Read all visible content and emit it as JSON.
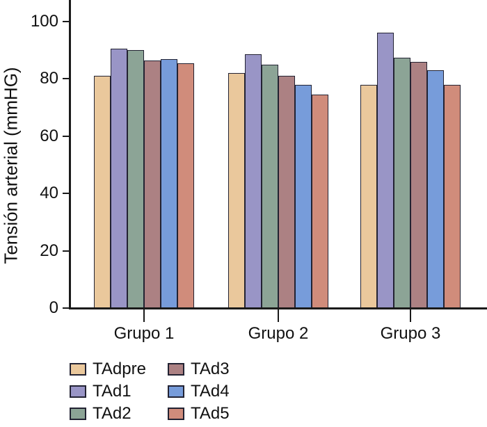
{
  "chart_data": {
    "type": "bar",
    "title": "",
    "xlabel": "",
    "ylabel": "Tensión arterial (mmHG)",
    "categories": [
      "Grupo 1",
      "Grupo 2",
      "Grupo 3"
    ],
    "y_ticks": [
      0,
      20,
      40,
      60,
      80,
      100
    ],
    "ylim": [
      0,
      107.5
    ],
    "grid": false,
    "legend_position": "bottom-left",
    "bar_border_color": "#222232",
    "axis_color": "#1a1a1a",
    "series": [
      {
        "name": "TAdpre",
        "color": "#EAC89C",
        "values": [
          81,
          82,
          78
        ]
      },
      {
        "name": "TAd1",
        "color": "#9995C6",
        "values": [
          90.5,
          88.5,
          96
        ]
      },
      {
        "name": "TAd2",
        "color": "#8CA496",
        "values": [
          90,
          85,
          87.5
        ]
      },
      {
        "name": "TAd3",
        "color": "#AC8183",
        "values": [
          86.5,
          81,
          86
        ]
      },
      {
        "name": "TAd4",
        "color": "#779CDA",
        "values": [
          87,
          78,
          83
        ]
      },
      {
        "name": "TAd5",
        "color": "#D08C7B",
        "values": [
          85.5,
          74.5,
          78
        ]
      }
    ]
  }
}
